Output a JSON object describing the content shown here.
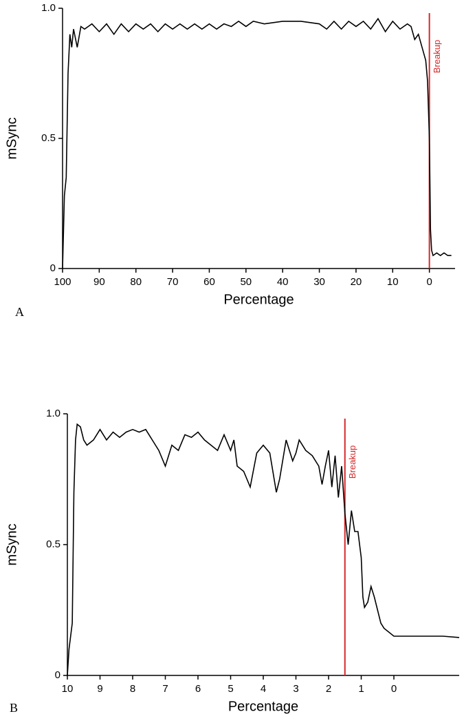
{
  "chart_data": [
    {
      "type": "line",
      "panel_label": "A",
      "xlabel": "Percentage",
      "ylabel": "mSync",
      "x": [
        100,
        99.5,
        99,
        98.5,
        98,
        97.5,
        97,
        96,
        95,
        94,
        92,
        90,
        88,
        86,
        84,
        82,
        80,
        78,
        76,
        74,
        72,
        70,
        68,
        66,
        64,
        62,
        60,
        58,
        56,
        54,
        52,
        50,
        48,
        45,
        40,
        35,
        30,
        28,
        26,
        24,
        22,
        20,
        18,
        16,
        14,
        12,
        10,
        8,
        6,
        5,
        4,
        3,
        2,
        1,
        0.5,
        0,
        -0.3,
        -0.6,
        -1,
        -2,
        -3,
        -4,
        -5,
        -6
      ],
      "series": [
        {
          "color": "#000000",
          "values": [
            0,
            0.28,
            0.35,
            0.75,
            0.9,
            0.85,
            0.92,
            0.85,
            0.93,
            0.92,
            0.94,
            0.91,
            0.94,
            0.9,
            0.94,
            0.91,
            0.94,
            0.92,
            0.94,
            0.91,
            0.94,
            0.92,
            0.94,
            0.92,
            0.94,
            0.92,
            0.94,
            0.92,
            0.94,
            0.93,
            0.95,
            0.93,
            0.95,
            0.94,
            0.95,
            0.95,
            0.94,
            0.92,
            0.95,
            0.92,
            0.95,
            0.93,
            0.95,
            0.92,
            0.96,
            0.91,
            0.95,
            0.92,
            0.94,
            0.93,
            0.88,
            0.9,
            0.85,
            0.8,
            0.72,
            0.5,
            0.15,
            0.07,
            0.05,
            0.06,
            0.05,
            0.06,
            0.05,
            0.05
          ]
        }
      ],
      "xlim": [
        100,
        -7
      ],
      "ylim": [
        0,
        1
      ],
      "xticks": [
        100,
        90,
        80,
        70,
        60,
        50,
        40,
        30,
        20,
        10,
        0
      ],
      "yticks": [
        0,
        0.5,
        {
          "value": 1,
          "label": "1.0"
        }
      ],
      "annotation": {
        "x": 0,
        "text": "Breakup",
        "color": "#d62728"
      }
    },
    {
      "type": "line",
      "panel_label": "B",
      "xlabel": "Percentage",
      "ylabel": "mSync",
      "x": [
        10,
        9.95,
        9.9,
        9.85,
        9.8,
        9.75,
        9.7,
        9.6,
        9.5,
        9.4,
        9.2,
        9.0,
        8.8,
        8.6,
        8.4,
        8.2,
        8.0,
        7.8,
        7.6,
        7.4,
        7.2,
        7.0,
        6.8,
        6.6,
        6.4,
        6.2,
        6.0,
        5.8,
        5.6,
        5.4,
        5.2,
        5.0,
        4.9,
        4.8,
        4.6,
        4.4,
        4.2,
        4.0,
        3.8,
        3.6,
        3.5,
        3.3,
        3.1,
        3.0,
        2.9,
        2.7,
        2.5,
        2.3,
        2.2,
        2.1,
        2.0,
        1.9,
        1.8,
        1.7,
        1.6,
        1.5,
        1.4,
        1.3,
        1.2,
        1.1,
        1.0,
        0.95,
        0.9,
        0.8,
        0.7,
        0.6,
        0.5,
        0.4,
        0.3,
        0.2,
        0.0,
        -0.5,
        -1.0,
        -1.5,
        -2.0
      ],
      "series": [
        {
          "color": "#000000",
          "values": [
            0,
            0.1,
            0.15,
            0.2,
            0.7,
            0.9,
            0.96,
            0.95,
            0.9,
            0.88,
            0.9,
            0.94,
            0.9,
            0.93,
            0.91,
            0.93,
            0.94,
            0.93,
            0.94,
            0.9,
            0.86,
            0.8,
            0.88,
            0.86,
            0.92,
            0.91,
            0.93,
            0.9,
            0.88,
            0.86,
            0.92,
            0.86,
            0.9,
            0.8,
            0.78,
            0.72,
            0.85,
            0.88,
            0.85,
            0.7,
            0.75,
            0.9,
            0.82,
            0.85,
            0.9,
            0.86,
            0.84,
            0.8,
            0.73,
            0.8,
            0.86,
            0.72,
            0.84,
            0.68,
            0.8,
            0.62,
            0.5,
            0.63,
            0.55,
            0.55,
            0.45,
            0.3,
            0.26,
            0.28,
            0.34,
            0.3,
            0.25,
            0.2,
            0.18,
            0.17,
            0.15,
            0.15,
            0.15,
            0.15,
            0.145
          ]
        }
      ],
      "xlim": [
        10,
        -2
      ],
      "ylim": [
        0,
        1
      ],
      "xticks": [
        10,
        9,
        8,
        7,
        6,
        5,
        4,
        3,
        2,
        1,
        0
      ],
      "yticks": [
        0,
        0.5,
        {
          "value": 1,
          "label": "1.0"
        }
      ],
      "annotation": {
        "x": 1.5,
        "text": "Breakup",
        "color": "#d62728"
      }
    }
  ]
}
